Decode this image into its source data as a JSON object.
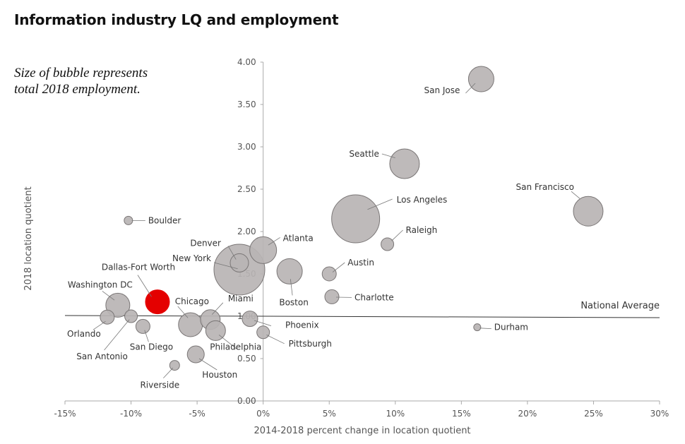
{
  "chart_data": {
    "type": "scatter",
    "title": "Information industry LQ and employment",
    "annotation": "Size of bubble represents total 2018 employment.",
    "xlabel": "2014-2018 percent change in location quotient",
    "ylabel": "2018 location quotient",
    "xlim": [
      -15,
      30
    ],
    "ylim": [
      0,
      4
    ],
    "x_ticks": [
      "-15%",
      "-10%",
      "-5%",
      "0%",
      "5%",
      "10%",
      "15%",
      "20%",
      "25%",
      "30%"
    ],
    "y_ticks": [
      "0.00",
      "0.50",
      "1.00",
      "1.50",
      "2.00",
      "2.50",
      "3.00",
      "3.50",
      "4.00"
    ],
    "reference_line": {
      "label": "National Average",
      "y": 1.0
    },
    "colors": {
      "bubble": "#b8b4b4",
      "bubble_stroke": "#7a7676",
      "highlight": "#e40000",
      "axis": "#aaaaaa",
      "baseline": "#333333"
    },
    "points": [
      {
        "name": "San Jose",
        "x": 16.5,
        "y": 3.8,
        "size": 18
      },
      {
        "name": "Seattle",
        "x": 10.7,
        "y": 2.8,
        "size": 21
      },
      {
        "name": "San Francisco",
        "x": 24.6,
        "y": 2.24,
        "size": 21
      },
      {
        "name": "Los Angeles",
        "x": 7.0,
        "y": 2.15,
        "size": 34
      },
      {
        "name": "Raleigh",
        "x": 9.4,
        "y": 1.85,
        "size": 9
      },
      {
        "name": "Atlanta",
        "x": 0.0,
        "y": 1.78,
        "size": 19
      },
      {
        "name": "Denver",
        "x": -1.8,
        "y": 1.63,
        "size": 13
      },
      {
        "name": "New York",
        "x": -1.8,
        "y": 1.55,
        "size": 36
      },
      {
        "name": "Boston",
        "x": 2.0,
        "y": 1.53,
        "size": 18
      },
      {
        "name": "Austin",
        "x": 5.0,
        "y": 1.5,
        "size": 10
      },
      {
        "name": "Charlotte",
        "x": 5.2,
        "y": 1.23,
        "size": 10
      },
      {
        "name": "Boulder",
        "x": -10.2,
        "y": 2.13,
        "size": 6
      },
      {
        "name": "Dallas-Fort Worth",
        "x": -8.0,
        "y": 1.17,
        "size": 17,
        "highlight": true
      },
      {
        "name": "Washington DC",
        "x": -11.0,
        "y": 1.13,
        "size": 17
      },
      {
        "name": "Orlando",
        "x": -11.8,
        "y": 0.99,
        "size": 10
      },
      {
        "name": "San Antonio",
        "x": -10.0,
        "y": 1.0,
        "size": 9
      },
      {
        "name": "San Diego",
        "x": -9.1,
        "y": 0.88,
        "size": 10
      },
      {
        "name": "Chicago",
        "x": -5.5,
        "y": 0.9,
        "size": 17
      },
      {
        "name": "Miami",
        "x": -4.0,
        "y": 0.96,
        "size": 14
      },
      {
        "name": "Philadelphia",
        "x": -3.6,
        "y": 0.83,
        "size": 14
      },
      {
        "name": "Phoenix",
        "x": -1.0,
        "y": 0.97,
        "size": 11
      },
      {
        "name": "Pittsburgh",
        "x": 0.0,
        "y": 0.81,
        "size": 9
      },
      {
        "name": "Houston",
        "x": -5.1,
        "y": 0.55,
        "size": 12
      },
      {
        "name": "Riverside",
        "x": -6.7,
        "y": 0.42,
        "size": 7
      },
      {
        "name": "Durham",
        "x": 16.2,
        "y": 0.87,
        "size": 5
      }
    ]
  },
  "labels": [
    {
      "name": "San Jose",
      "text": "San Jose",
      "anchor": "end"
    },
    {
      "name": "Seattle",
      "text": "Seattle",
      "anchor": "end"
    },
    {
      "name": "San Francisco",
      "text": "San Francisco",
      "anchor": "end"
    },
    {
      "name": "Los Angeles",
      "text": "Los Angeles",
      "anchor": "start"
    },
    {
      "name": "Raleigh",
      "text": "Raleigh",
      "anchor": "start"
    },
    {
      "name": "Atlanta",
      "text": "Atlanta",
      "anchor": "start"
    },
    {
      "name": "Denver",
      "text": "Denver",
      "anchor": "end"
    },
    {
      "name": "New York",
      "text": "New York",
      "anchor": "end"
    },
    {
      "name": "Boston",
      "text": "Boston",
      "anchor": "middle"
    },
    {
      "name": "Austin",
      "text": "Austin",
      "anchor": "start"
    },
    {
      "name": "Charlotte",
      "text": "Charlotte",
      "anchor": "start"
    },
    {
      "name": "Boulder",
      "text": "Boulder",
      "anchor": "start"
    },
    {
      "name": "Dallas-Fort Worth",
      "text": "Dallas-Fort Worth",
      "anchor": "middle"
    },
    {
      "name": "Washington DC",
      "text": "Washington DC",
      "anchor": "middle"
    },
    {
      "name": "Orlando",
      "text": "Orlando",
      "anchor": "middle"
    },
    {
      "name": "San Antonio",
      "text": "San Antonio",
      "anchor": "middle"
    },
    {
      "name": "San Diego",
      "text": "San Diego",
      "anchor": "middle"
    },
    {
      "name": "Chicago",
      "text": "Chicago",
      "anchor": "start"
    },
    {
      "name": "Miami",
      "text": "Miami",
      "anchor": "start"
    },
    {
      "name": "Philadelphia",
      "text": "Philadelphia",
      "anchor": "start"
    },
    {
      "name": "Phoenix",
      "text": "Phoenix",
      "anchor": "start"
    },
    {
      "name": "Pittsburgh",
      "text": "Pittsburgh",
      "anchor": "start"
    },
    {
      "name": "Houston",
      "text": "Houston",
      "anchor": "middle"
    },
    {
      "name": "Riverside",
      "text": "Riverside",
      "anchor": "middle"
    },
    {
      "name": "Durham",
      "text": "Durham",
      "anchor": "start"
    }
  ]
}
